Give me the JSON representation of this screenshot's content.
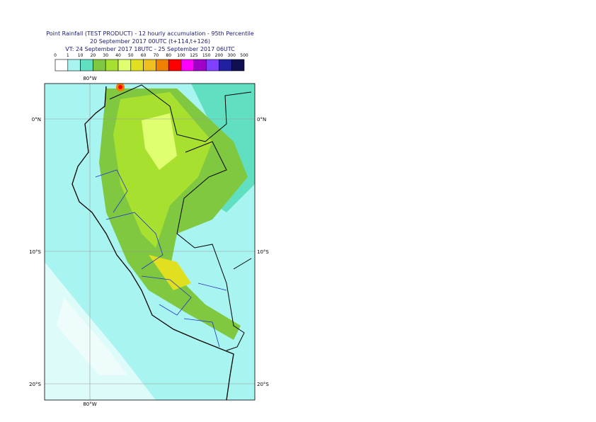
{
  "header": {
    "title": "Point Rainfall (TEST PRODUCT) - 12 hourly accumulation - 95th Percentile",
    "run": "20 September 2017 00UTC (t+114,t+126)",
    "valid": "VT: 24 September 2017 18UTC - 25 September 2017 06UTC"
  },
  "legend": {
    "thresholds": [
      0,
      1,
      10,
      20,
      30,
      40,
      50,
      60,
      70,
      80,
      100,
      125,
      150,
      200,
      300,
      500
    ],
    "colors": [
      "#ffffff",
      "#a8f4f0",
      "#60e0c0",
      "#80c840",
      "#a8e030",
      "#e0ff70",
      "#e0e020",
      "#f0c020",
      "#f08000",
      "#ff0000",
      "#ff00ff",
      "#a000c8",
      "#8040ff",
      "#2020a0",
      "#101050"
    ]
  },
  "map": {
    "lon_labels": [
      "80°W"
    ],
    "lat_labels": [
      "0°N",
      "10°S",
      "20°S"
    ]
  }
}
